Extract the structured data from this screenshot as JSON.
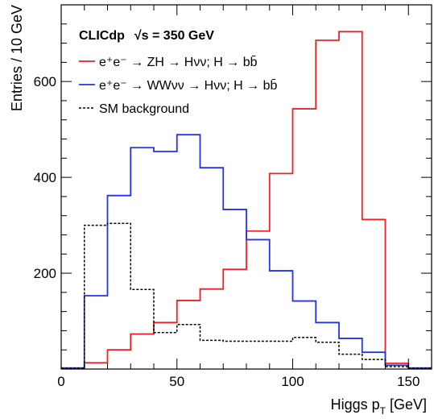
{
  "chart_data": {
    "type": "histogram",
    "title": "CLICdp  √s = 350 GeV",
    "title_label": "CLICdp",
    "title_energy": "√s = 350 GeV",
    "xlabel": "Higgs p_T [GeV]",
    "xlabel_main": "Higgs p",
    "xlabel_sub": "T",
    "xlabel_unit": "[GeV]",
    "ylabel": "Entries / 10 GeV",
    "xlim": [
      0,
      160
    ],
    "ylim": [
      0,
      760
    ],
    "x_ticks": [
      0,
      50,
      100,
      150
    ],
    "x_tick_labels": [
      "0",
      "50",
      "100",
      "150"
    ],
    "y_ticks": [
      200,
      400,
      600
    ],
    "y_tick_labels": [
      "200",
      "400",
      "600"
    ],
    "bin_edges": [
      0,
      10,
      20,
      30,
      40,
      50,
      60,
      70,
      80,
      90,
      100,
      110,
      120,
      130,
      140,
      150,
      160
    ],
    "legend_position": "top-left",
    "grid": false,
    "series": [
      {
        "name": "e⁺e⁻ → ZH → Hνν; H → bb̄",
        "legend_text": "e⁺e⁻ → ZH → Hνν; H → bb̄",
        "color": "#ee2222",
        "style": "solid",
        "values": [
          2,
          13,
          40,
          73,
          97,
          143,
          167,
          208,
          288,
          408,
          543,
          686,
          704,
          312,
          12,
          2
        ]
      },
      {
        "name": "e⁺e⁻ → WWνν → Hνν; H → bb̄",
        "legend_text": "e⁺e⁻ → WWνν → Hνν; H → bb̄",
        "color": "#2233ee",
        "style": "solid",
        "values": [
          2,
          153,
          362,
          462,
          454,
          489,
          420,
          333,
          270,
          205,
          142,
          97,
          64,
          35,
          8,
          2
        ]
      },
      {
        "name": "SM background",
        "legend_text": "SM background",
        "color": "#000000",
        "style": "dotted",
        "values": [
          2,
          300,
          304,
          166,
          76,
          93,
          60,
          58,
          58,
          58,
          66,
          56,
          31,
          20,
          5,
          2
        ]
      }
    ]
  }
}
